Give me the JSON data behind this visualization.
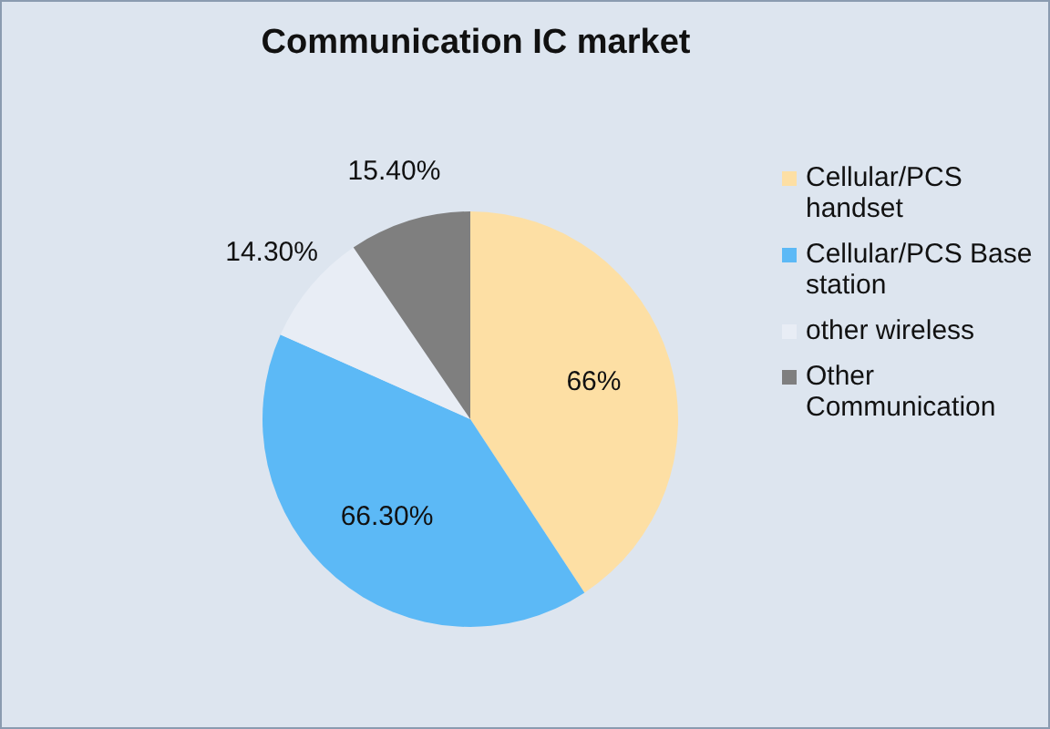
{
  "chart_data": {
    "type": "pie",
    "title": "Communication IC market",
    "categories": [
      "Cellular/PCS handset",
      "Cellular/PCS Base station",
      "other wireless",
      "Other Communication"
    ],
    "values": [
      66,
      66.3,
      14.3,
      15.4
    ],
    "value_labels": [
      "66%",
      "66.30%",
      "14.30%",
      "15.40%"
    ],
    "colors": [
      "#fddfa4",
      "#5cb9f6",
      "#e8edf5",
      "#7f7f7f"
    ],
    "legend": "right"
  }
}
